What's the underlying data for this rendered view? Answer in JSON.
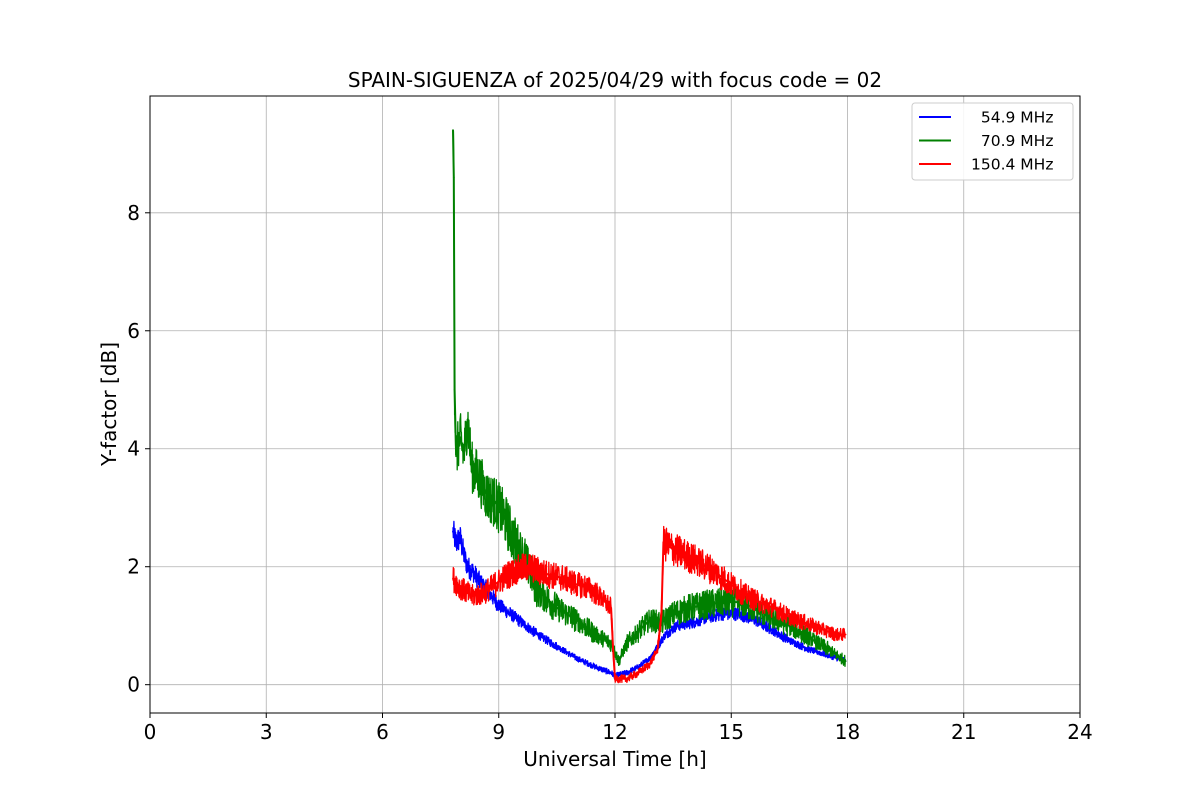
{
  "chart_data": {
    "type": "line",
    "title": "SPAIN-SIGUENZA of 2025/04/29 with focus code = 02",
    "xlabel": "Universal Time [h]",
    "ylabel": "Y-factor [dB]",
    "xlim": [
      0,
      24
    ],
    "ylim": [
      -0.48,
      9.98
    ],
    "xticks": [
      "0",
      "3",
      "6",
      "9",
      "12",
      "15",
      "18",
      "21",
      "24"
    ],
    "yticks": [
      "0",
      "2",
      "4",
      "6",
      "8"
    ],
    "grid": true,
    "legend_position": "top-right",
    "series": [
      {
        "name": "  54.9 MHz",
        "color": "#0000ff",
        "x": [
          7.82,
          7.9,
          8.0,
          8.1,
          8.2,
          8.35,
          8.5,
          8.7,
          9.0,
          9.3,
          9.6,
          10.0,
          10.5,
          11.0,
          11.5,
          11.9,
          12.0,
          12.3,
          12.6,
          12.9,
          13.1,
          13.3,
          13.6,
          14.0,
          14.4,
          14.8,
          15.2,
          15.6,
          16.0,
          16.5,
          17.0,
          17.5,
          17.95
        ],
        "y": [
          2.6,
          2.4,
          2.5,
          2.2,
          2.0,
          1.9,
          1.75,
          1.6,
          1.35,
          1.2,
          1.05,
          0.85,
          0.65,
          0.45,
          0.3,
          0.2,
          0.15,
          0.2,
          0.3,
          0.45,
          0.65,
          0.85,
          1.0,
          1.05,
          1.15,
          1.2,
          1.2,
          1.1,
          0.95,
          0.75,
          0.6,
          0.5,
          0.4
        ]
      },
      {
        "name": "  70.9 MHz",
        "color": "#008000",
        "x": [
          7.82,
          7.84,
          7.86,
          7.9,
          8.0,
          8.1,
          8.2,
          8.3,
          8.5,
          8.7,
          8.9,
          9.1,
          9.3,
          9.5,
          9.7,
          10.0,
          10.5,
          11.0,
          11.5,
          11.9,
          12.1,
          12.3,
          12.6,
          12.9,
          13.2,
          13.5,
          13.9,
          14.3,
          14.8,
          15.2,
          15.6,
          16.0,
          16.5,
          17.0,
          17.5,
          17.95
        ],
        "y": [
          9.4,
          8.6,
          5.0,
          3.9,
          4.2,
          3.9,
          4.5,
          3.7,
          3.5,
          3.2,
          3.1,
          2.9,
          2.6,
          2.3,
          2.1,
          1.6,
          1.3,
          1.1,
          0.85,
          0.7,
          0.4,
          0.7,
          0.9,
          1.1,
          1.05,
          1.2,
          1.3,
          1.35,
          1.4,
          1.4,
          1.3,
          1.15,
          1.0,
          0.8,
          0.6,
          0.4
        ]
      },
      {
        "name": "150.4 MHz",
        "color": "#ff0000",
        "x": [
          7.82,
          8.0,
          8.3,
          8.6,
          8.9,
          9.2,
          9.5,
          9.8,
          10.1,
          10.4,
          10.7,
          11.0,
          11.3,
          11.6,
          11.9,
          11.95,
          12.0,
          12.3,
          12.6,
          12.9,
          13.1,
          13.2,
          13.25,
          13.5,
          13.8,
          14.1,
          14.5,
          14.9,
          15.3,
          15.7,
          16.1,
          16.5,
          16.9,
          17.3,
          17.7,
          17.95
        ],
        "y": [
          1.8,
          1.65,
          1.5,
          1.55,
          1.7,
          1.85,
          1.95,
          2.0,
          1.9,
          1.85,
          1.8,
          1.7,
          1.65,
          1.5,
          1.3,
          0.6,
          0.1,
          0.1,
          0.2,
          0.35,
          0.6,
          1.2,
          2.4,
          2.3,
          2.2,
          2.1,
          1.95,
          1.75,
          1.55,
          1.4,
          1.3,
          1.15,
          1.05,
          0.95,
          0.85,
          0.85
        ]
      }
    ]
  }
}
